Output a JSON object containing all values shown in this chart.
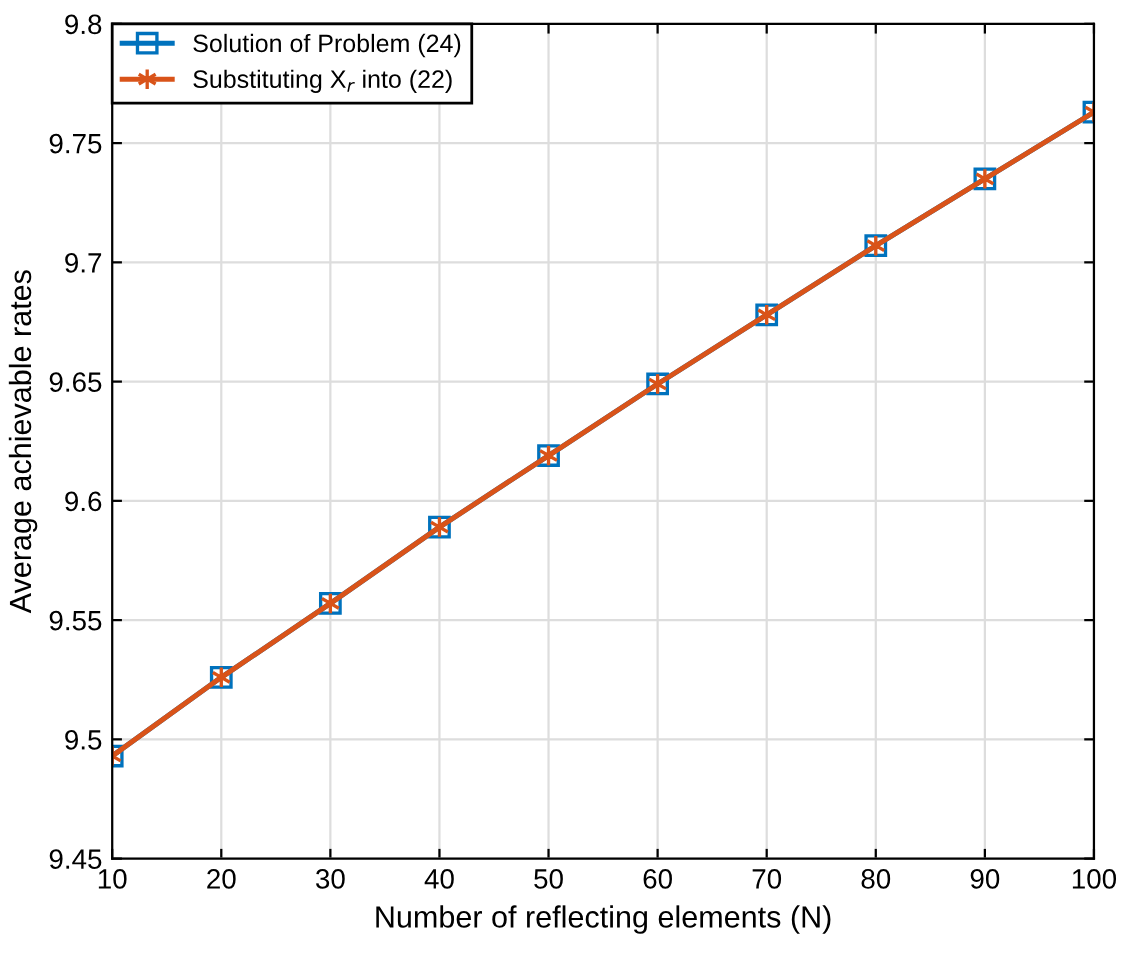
{
  "chart_data": {
    "type": "line",
    "xlabel": "Number of reflecting elements (N)",
    "ylabel": "Average achievable rates",
    "x": [
      10,
      20,
      30,
      40,
      50,
      60,
      70,
      80,
      90,
      100
    ],
    "series": [
      {
        "name": "Solution of Problem (24)",
        "color": "#0072bd",
        "marker": "square",
        "values": [
          9.493,
          9.526,
          9.557,
          9.589,
          9.619,
          9.649,
          9.678,
          9.707,
          9.735,
          9.763
        ]
      },
      {
        "name": "Substituting X$_{r}$ into (22)",
        "color": "#d95319",
        "marker": "cross",
        "values": [
          9.493,
          9.526,
          9.557,
          9.589,
          9.619,
          9.649,
          9.678,
          9.707,
          9.735,
          9.763
        ]
      }
    ],
    "xlim": [
      10,
      100
    ],
    "xticks": [
      10,
      20,
      30,
      40,
      50,
      60,
      70,
      80,
      90,
      100
    ],
    "ylim": [
      9.45,
      9.8
    ],
    "yticks": [
      9.45,
      9.5,
      9.55,
      9.6,
      9.65,
      9.7,
      9.75,
      9.8
    ],
    "grid": true,
    "legend": "top left",
    "line_style": "solid"
  }
}
